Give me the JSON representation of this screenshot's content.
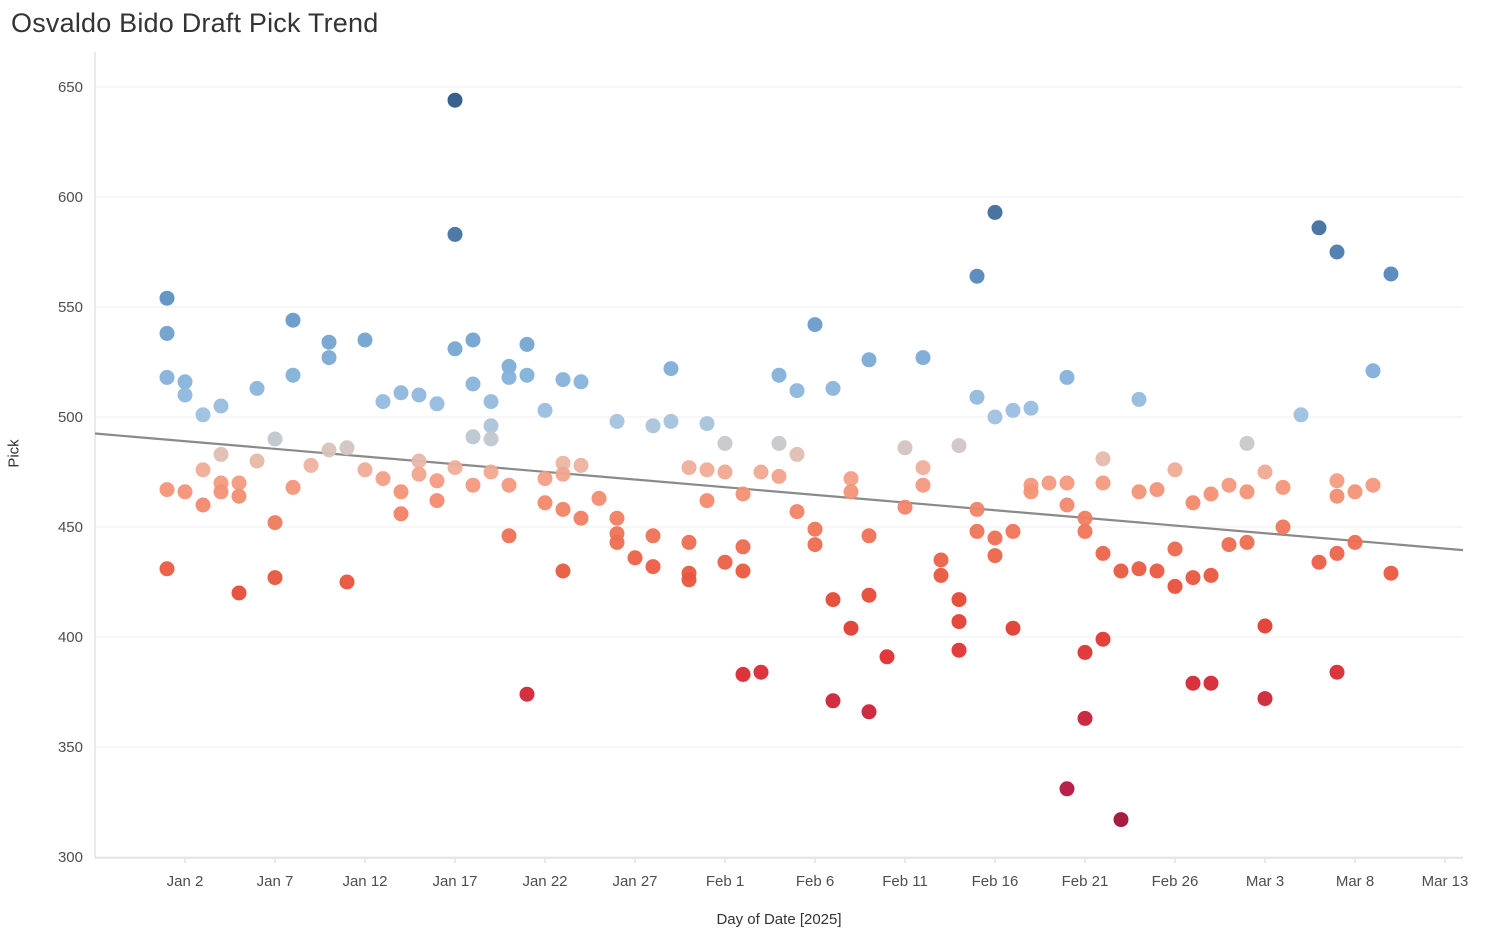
{
  "chart_data": {
    "type": "scatter",
    "title": "Osvaldo Bido Draft Pick Trend",
    "xlabel": "Day of Date [2025]",
    "ylabel": "Pick",
    "grid": "horizontal-only",
    "legend": "none",
    "x_unit": "days relative to Jan 2, 2025 (day 0 = Jan 2)",
    "xlim_days": [
      -5,
      71
    ],
    "ylim": [
      300,
      663
    ],
    "y_ticks": [
      650,
      600,
      550,
      500,
      450,
      400,
      350,
      300
    ],
    "x_ticks": [
      {
        "day": 0,
        "label": "Jan 2"
      },
      {
        "day": 5,
        "label": "Jan 7"
      },
      {
        "day": 10,
        "label": "Jan 12"
      },
      {
        "day": 15,
        "label": "Jan 17"
      },
      {
        "day": 20,
        "label": "Jan 22"
      },
      {
        "day": 25,
        "label": "Jan 27"
      },
      {
        "day": 30,
        "label": "Feb 1"
      },
      {
        "day": 35,
        "label": "Feb 6"
      },
      {
        "day": 40,
        "label": "Feb 11"
      },
      {
        "day": 45,
        "label": "Feb 16"
      },
      {
        "day": 50,
        "label": "Feb 21"
      },
      {
        "day": 55,
        "label": "Feb 26"
      },
      {
        "day": 60,
        "label": "Mar 3"
      },
      {
        "day": 65,
        "label": "Mar 8"
      },
      {
        "day": 70,
        "label": "Mar 13"
      }
    ],
    "trend_line": {
      "day_start": -5,
      "value_start": 492.5,
      "day_end": 71,
      "value_end": 439.5,
      "color": "#8a8a8a"
    },
    "color_scale": {
      "description": "diverging red-to-blue keyed on pick value",
      "stops": [
        [
          316,
          "#a31038"
        ],
        [
          331,
          "#b5163e"
        ],
        [
          363,
          "#c81f39"
        ],
        [
          384,
          "#da2a33"
        ],
        [
          404,
          "#e23c30"
        ],
        [
          420,
          "#e74c36"
        ],
        [
          436,
          "#ec6248"
        ],
        [
          450,
          "#ef775a"
        ],
        [
          462,
          "#f28a6e"
        ],
        [
          471,
          "#f49c82"
        ],
        [
          478,
          "#eeb2a0"
        ],
        [
          484,
          "#dcc1b8"
        ],
        [
          488,
          "#c8c7c9"
        ],
        [
          493,
          "#b3c6d7"
        ],
        [
          500,
          "#a0c1e0"
        ],
        [
          512,
          "#8cb6dd"
        ],
        [
          525,
          "#7dacd6"
        ],
        [
          538,
          "#6fa0ce"
        ],
        [
          552,
          "#6092c5"
        ],
        [
          566,
          "#5485ba"
        ],
        [
          585,
          "#44719f"
        ],
        [
          600,
          "#3c6795"
        ],
        [
          620,
          "#335c8c"
        ],
        [
          650,
          "#2b5685"
        ]
      ]
    },
    "points": [
      [
        -1,
        554
      ],
      [
        -1,
        538
      ],
      [
        -1,
        518
      ],
      [
        -1,
        467
      ],
      [
        -1,
        431
      ],
      [
        0,
        516
      ],
      [
        0,
        510
      ],
      [
        0,
        466
      ],
      [
        1,
        501
      ],
      [
        1,
        476
      ],
      [
        1,
        460
      ],
      [
        2,
        505
      ],
      [
        2,
        483
      ],
      [
        2,
        470
      ],
      [
        2,
        466
      ],
      [
        3,
        470
      ],
      [
        3,
        464
      ],
      [
        3,
        420
      ],
      [
        4,
        513
      ],
      [
        4,
        480
      ],
      [
        5,
        490
      ],
      [
        5,
        452
      ],
      [
        5,
        427
      ],
      [
        6,
        544
      ],
      [
        6,
        519
      ],
      [
        6,
        468
      ],
      [
        7,
        478
      ],
      [
        8,
        534
      ],
      [
        8,
        527
      ],
      [
        8,
        485
      ],
      [
        9,
        486
      ],
      [
        9,
        425
      ],
      [
        10,
        535
      ],
      [
        10,
        476
      ],
      [
        11,
        507
      ],
      [
        11,
        472
      ],
      [
        12,
        511
      ],
      [
        12,
        466
      ],
      [
        12,
        456
      ],
      [
        13,
        510
      ],
      [
        13,
        480
      ],
      [
        13,
        474
      ],
      [
        14,
        506
      ],
      [
        14,
        471
      ],
      [
        14,
        462
      ],
      [
        15,
        644
      ],
      [
        15,
        583
      ],
      [
        15,
        531
      ],
      [
        15,
        477
      ],
      [
        16,
        535
      ],
      [
        16,
        515
      ],
      [
        16,
        491
      ],
      [
        16,
        469
      ],
      [
        17,
        507
      ],
      [
        17,
        496
      ],
      [
        17,
        490
      ],
      [
        17,
        475
      ],
      [
        18,
        523
      ],
      [
        18,
        518
      ],
      [
        18,
        469
      ],
      [
        18,
        446
      ],
      [
        19,
        533
      ],
      [
        19,
        519
      ],
      [
        19,
        374
      ],
      [
        20,
        503
      ],
      [
        20,
        472
      ],
      [
        20,
        461
      ],
      [
        21,
        517
      ],
      [
        21,
        479
      ],
      [
        21,
        474
      ],
      [
        21,
        458
      ],
      [
        21,
        430
      ],
      [
        22,
        516
      ],
      [
        22,
        478
      ],
      [
        22,
        454
      ],
      [
        23,
        463
      ],
      [
        24,
        498
      ],
      [
        24,
        454
      ],
      [
        24,
        447
      ],
      [
        24,
        443
      ],
      [
        25,
        436
      ],
      [
        26,
        496
      ],
      [
        26,
        446
      ],
      [
        26,
        432
      ],
      [
        27,
        522
      ],
      [
        27,
        498
      ],
      [
        28,
        477
      ],
      [
        28,
        443
      ],
      [
        28,
        429
      ],
      [
        28,
        426
      ],
      [
        29,
        497
      ],
      [
        29,
        476
      ],
      [
        29,
        462
      ],
      [
        30,
        488
      ],
      [
        30,
        475
      ],
      [
        30,
        434
      ],
      [
        31,
        465
      ],
      [
        31,
        441
      ],
      [
        31,
        430
      ],
      [
        31,
        383
      ],
      [
        32,
        475
      ],
      [
        32,
        384
      ],
      [
        33,
        519
      ],
      [
        33,
        488
      ],
      [
        33,
        473
      ],
      [
        34,
        512
      ],
      [
        34,
        483
      ],
      [
        34,
        457
      ],
      [
        35,
        542
      ],
      [
        35,
        449
      ],
      [
        35,
        442
      ],
      [
        36,
        513
      ],
      [
        36,
        417
      ],
      [
        36,
        371
      ],
      [
        37,
        472
      ],
      [
        37,
        466
      ],
      [
        37,
        404
      ],
      [
        38,
        526
      ],
      [
        38,
        446
      ],
      [
        38,
        419
      ],
      [
        38,
        366
      ],
      [
        39,
        391
      ],
      [
        40,
        486
      ],
      [
        40,
        459
      ],
      [
        41,
        527
      ],
      [
        41,
        477
      ],
      [
        41,
        469
      ],
      [
        42,
        435
      ],
      [
        42,
        428
      ],
      [
        43,
        487
      ],
      [
        43,
        417
      ],
      [
        43,
        407
      ],
      [
        43,
        394
      ],
      [
        44,
        564
      ],
      [
        44,
        509
      ],
      [
        44,
        458
      ],
      [
        44,
        448
      ],
      [
        45,
        593
      ],
      [
        45,
        500
      ],
      [
        45,
        445
      ],
      [
        45,
        437
      ],
      [
        46,
        503
      ],
      [
        46,
        448
      ],
      [
        46,
        404
      ],
      [
        47,
        504
      ],
      [
        47,
        469
      ],
      [
        47,
        466
      ],
      [
        48,
        470
      ],
      [
        49,
        518
      ],
      [
        49,
        470
      ],
      [
        49,
        460
      ],
      [
        49,
        331
      ],
      [
        50,
        454
      ],
      [
        50,
        448
      ],
      [
        50,
        393
      ],
      [
        50,
        363
      ],
      [
        51,
        481
      ],
      [
        51,
        470
      ],
      [
        51,
        438
      ],
      [
        51,
        399
      ],
      [
        52,
        430
      ],
      [
        52,
        317
      ],
      [
        53,
        508
      ],
      [
        53,
        466
      ],
      [
        53,
        431
      ],
      [
        54,
        467
      ],
      [
        54,
        430
      ],
      [
        55,
        476
      ],
      [
        55,
        440
      ],
      [
        55,
        423
      ],
      [
        56,
        461
      ],
      [
        56,
        427
      ],
      [
        56,
        379
      ],
      [
        57,
        465
      ],
      [
        57,
        428
      ],
      [
        57,
        379
      ],
      [
        58,
        469
      ],
      [
        58,
        442
      ],
      [
        59,
        488
      ],
      [
        59,
        466
      ],
      [
        59,
        443
      ],
      [
        60,
        475
      ],
      [
        60,
        405
      ],
      [
        60,
        372
      ],
      [
        61,
        468
      ],
      [
        61,
        450
      ],
      [
        62,
        501
      ],
      [
        63,
        586
      ],
      [
        63,
        434
      ],
      [
        64,
        575
      ],
      [
        64,
        471
      ],
      [
        64,
        464
      ],
      [
        64,
        438
      ],
      [
        64,
        384
      ],
      [
        65,
        466
      ],
      [
        65,
        443
      ],
      [
        66,
        521
      ],
      [
        66,
        469
      ],
      [
        67,
        565
      ],
      [
        67,
        429
      ]
    ],
    "style_colors": {
      "gridline": "#efefef",
      "axis_line": "#d7d7d7",
      "tick_text": "#4e4e4e",
      "title_text": "#343434"
    }
  }
}
